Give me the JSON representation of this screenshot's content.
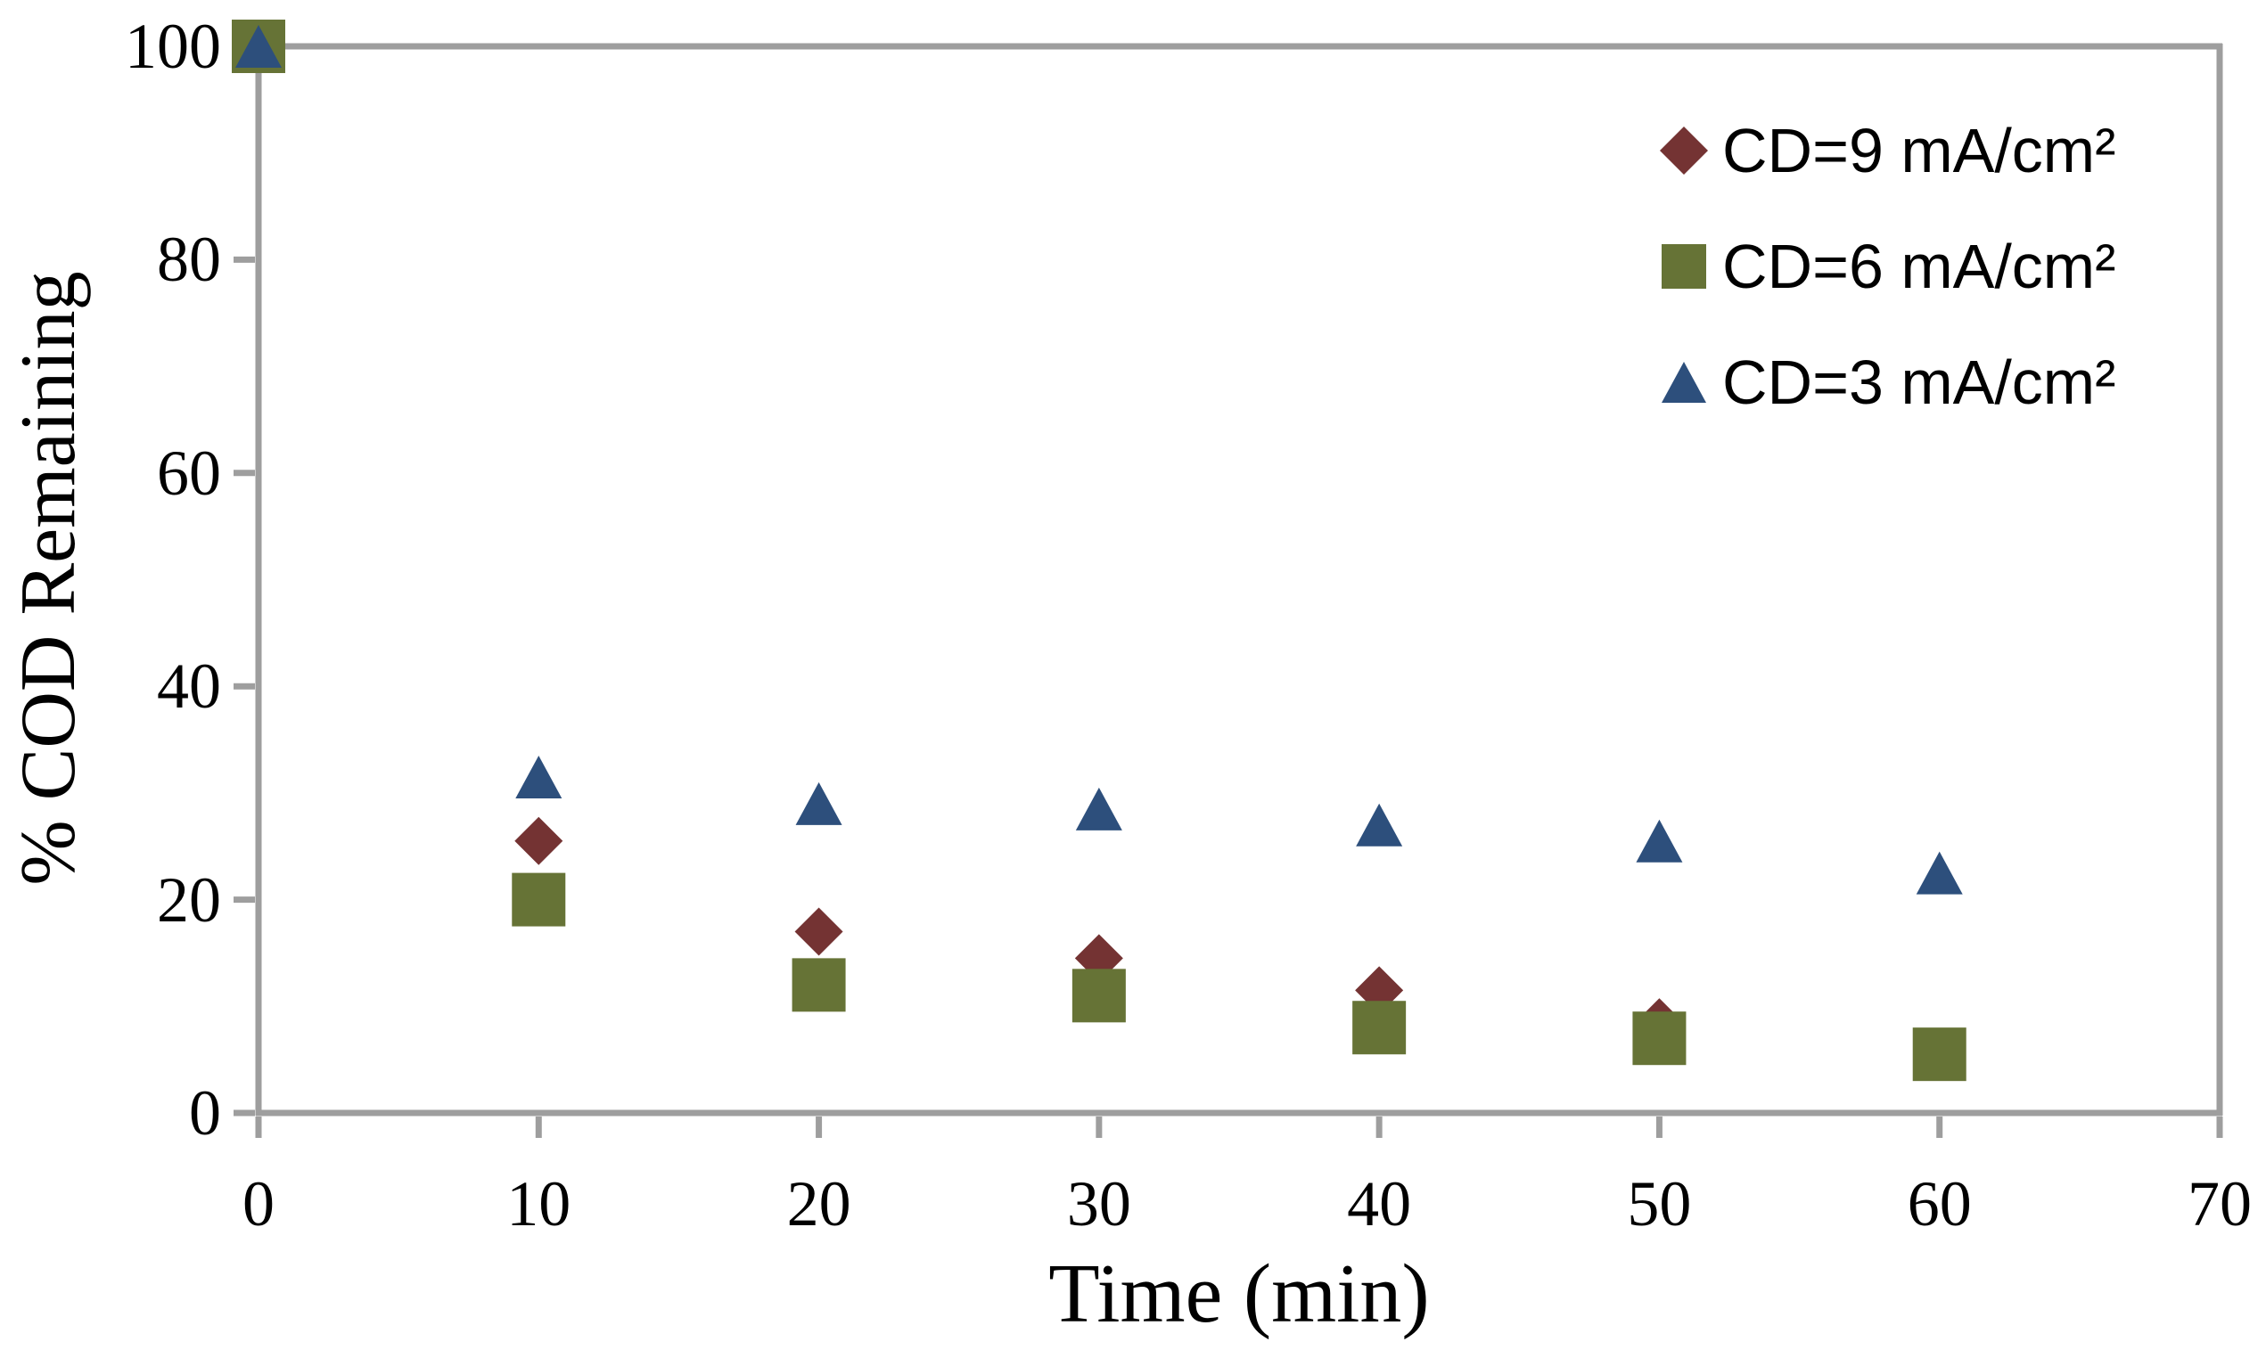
{
  "chart_data": {
    "type": "scatter",
    "title": "",
    "xlabel": "Time (min)",
    "ylabel": "% COD Remaining",
    "xlim": [
      0,
      70
    ],
    "ylim": [
      0,
      100
    ],
    "x_ticks": [
      0,
      10,
      20,
      30,
      40,
      50,
      60,
      70
    ],
    "y_ticks": [
      0,
      20,
      40,
      60,
      80,
      100
    ],
    "grid": false,
    "legend_position": "top-right-inside",
    "axis_color": "#9E9E9E",
    "text_color": "#000000",
    "series": [
      {
        "name": "CD=9 mA/cm²",
        "marker": "diamond",
        "color": "#743333",
        "points": [
          [
            0,
            100
          ],
          [
            10,
            25.5
          ],
          [
            20,
            17
          ],
          [
            30,
            14.5
          ],
          [
            40,
            11.5
          ],
          [
            50,
            8.5
          ],
          [
            60,
            5.5
          ]
        ]
      },
      {
        "name": "CD=6 mA/cm²",
        "marker": "square",
        "color": "#667336",
        "points": [
          [
            0,
            100
          ],
          [
            10,
            20
          ],
          [
            20,
            12
          ],
          [
            30,
            11
          ],
          [
            40,
            8
          ],
          [
            50,
            7
          ],
          [
            60,
            5.5
          ]
        ]
      },
      {
        "name": "CD=3 mA/cm²",
        "marker": "triangle",
        "color": "#2D4F7C",
        "points": [
          [
            0,
            100
          ],
          [
            10,
            31.5
          ],
          [
            20,
            29
          ],
          [
            30,
            28.5
          ],
          [
            40,
            27
          ],
          [
            50,
            25.5
          ],
          [
            60,
            22.5
          ]
        ]
      }
    ]
  }
}
